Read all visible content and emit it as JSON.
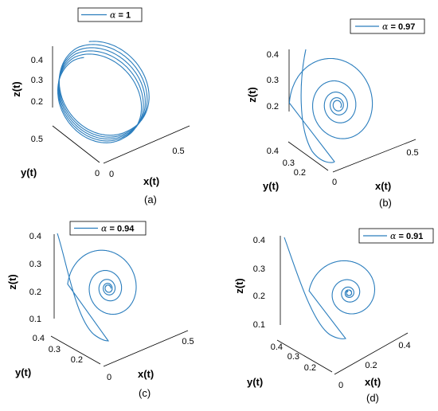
{
  "chart_data": [
    {
      "type": "line",
      "panel_label": "(a)",
      "legend": {
        "symbol": "α",
        "text": " = 1",
        "position": "top"
      },
      "series": [
        {
          "name": "α = 1",
          "color": "#2a7dbd",
          "shape": "limit-cycle"
        }
      ],
      "axes": {
        "x": {
          "label": "x(t)",
          "ticks": [
            "0",
            "0.5"
          ]
        },
        "y": {
          "label": "y(t)",
          "ticks": [
            "0",
            "0.5"
          ]
        },
        "z": {
          "label": "z(t)",
          "ticks": [
            "0.2",
            "0.3",
            "0.4"
          ]
        }
      }
    },
    {
      "type": "line",
      "panel_label": "(b)",
      "legend": {
        "symbol": "α",
        "text": " = 0.97",
        "position": "top-right"
      },
      "series": [
        {
          "name": "α = 0.97",
          "color": "#2a7dbd",
          "shape": "spiral"
        }
      ],
      "axes": {
        "x": {
          "label": "x(t)",
          "ticks": [
            "0",
            "0.5"
          ]
        },
        "y": {
          "label": "y(t)",
          "ticks": [
            "0.2",
            "0.3",
            "0.4"
          ]
        },
        "z": {
          "label": "z(t)",
          "ticks": [
            "0.2",
            "0.3",
            "0.4"
          ]
        }
      }
    },
    {
      "type": "line",
      "panel_label": "(c)",
      "legend": {
        "symbol": "α",
        "text": " = 0.94",
        "position": "top"
      },
      "series": [
        {
          "name": "α = 0.94",
          "color": "#2a7dbd",
          "shape": "spiral"
        }
      ],
      "axes": {
        "x": {
          "label": "x(t)",
          "ticks": [
            "0",
            "0.5"
          ]
        },
        "y": {
          "label": "y(t)",
          "ticks": [
            "0.2",
            "0.3",
            "0.4"
          ]
        },
        "z": {
          "label": "z(t)",
          "ticks": [
            "0.1",
            "0.2",
            "0.3",
            "0.4"
          ]
        }
      }
    },
    {
      "type": "line",
      "panel_label": "(d)",
      "legend": {
        "symbol": "α",
        "text": " = 0.91",
        "position": "top-right"
      },
      "series": [
        {
          "name": "α = 0.91",
          "color": "#2a7dbd",
          "shape": "spiral"
        }
      ],
      "axes": {
        "x": {
          "label": "x(t)",
          "ticks": [
            "0",
            "0.2",
            "0.4"
          ]
        },
        "y": {
          "label": "y(t)",
          "ticks": [
            "0.2",
            "0.3",
            "0.4"
          ]
        },
        "z": {
          "label": "z(t)",
          "ticks": [
            "0.1",
            "0.2",
            "0.3",
            "0.4"
          ]
        }
      }
    }
  ]
}
